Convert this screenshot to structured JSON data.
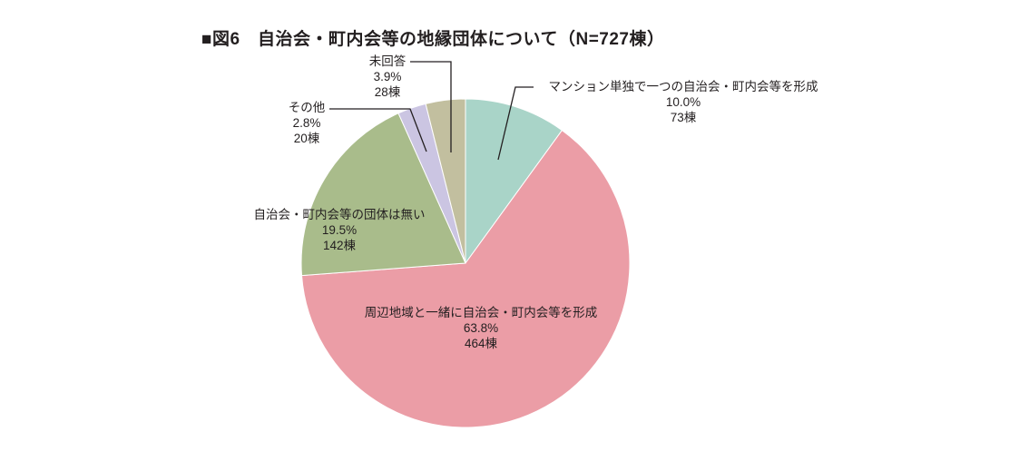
{
  "title": {
    "text": "■図6　自治会・町内会等の地縁団体について（N=727棟）"
  },
  "chart_data": {
    "type": "pie",
    "title": "図6　自治会・町内会等の地縁団体について（N=727棟）",
    "n_label": "N=727棟",
    "total": 727,
    "unit": "棟",
    "direction": "clockwise",
    "start_angle_deg": 0,
    "legend": "none (labels beside slices with leader lines)",
    "segments": [
      {
        "label": "マンション単独で一つの自治会・町内会等を形成",
        "pct": 10.0,
        "pct_label": "10.0%",
        "count": 73,
        "count_label": "73棟",
        "color": "#a9d4c8"
      },
      {
        "label": "周辺地域と一緒に自治会・町内会等を形成",
        "pct": 63.8,
        "pct_label": "63.8%",
        "count": 464,
        "count_label": "464棟",
        "color": "#eb9da6"
      },
      {
        "label": "自治会・町内会等の団体は無い",
        "pct": 19.5,
        "pct_label": "19.5%",
        "count": 142,
        "count_label": "142棟",
        "color": "#a9bc8b"
      },
      {
        "label": "その他",
        "pct": 2.8,
        "pct_label": "2.8%",
        "count": 20,
        "count_label": "20棟",
        "color": "#cbc5e2"
      },
      {
        "label": "未回答",
        "pct": 3.9,
        "pct_label": "3.9%",
        "count": 28,
        "count_label": "28棟",
        "color": "#c2bf9f"
      }
    ]
  }
}
